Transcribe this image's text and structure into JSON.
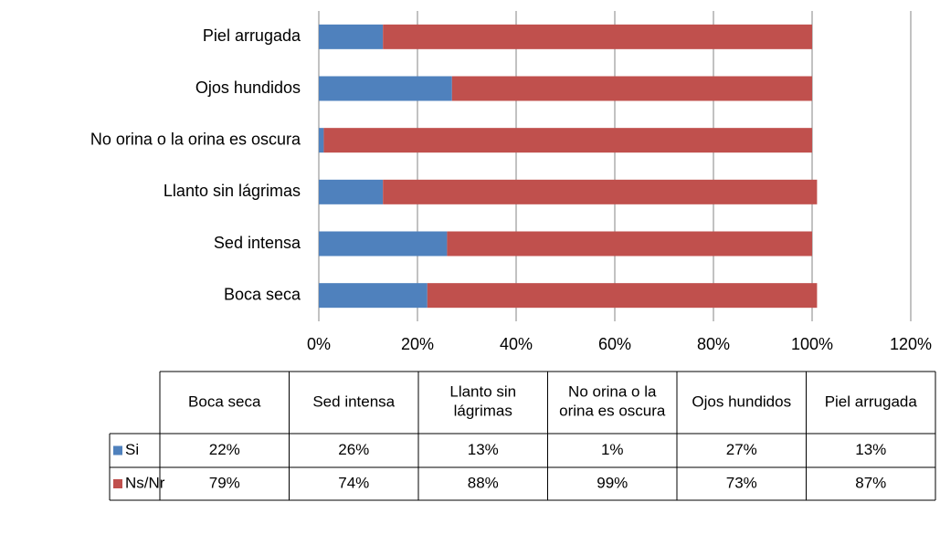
{
  "chart_data": {
    "type": "bar",
    "categories": [
      "Boca seca",
      "Sed intensa",
      "Llanto sin lágrimas",
      "No orina o la orina es oscura",
      "Ojos hundidos",
      "Piel arrugada"
    ],
    "series": [
      {
        "name": "Si",
        "color": "#4f81bd",
        "values": [
          22,
          26,
          13,
          1,
          27,
          13
        ],
        "value_labels": [
          "22%",
          "26%",
          "13%",
          "1%",
          "27%",
          "13%"
        ]
      },
      {
        "name": "Ns/Nr",
        "color": "#c0504d",
        "values": [
          79,
          74,
          88,
          99,
          73,
          87
        ],
        "value_labels": [
          "79%",
          "74%",
          "88%",
          "99%",
          "73%",
          "87%"
        ]
      }
    ],
    "stacked": true,
    "orientation": "horizontal",
    "xlim": [
      0,
      120
    ],
    "xticks": [
      {
        "value": 0,
        "label": "0%"
      },
      {
        "value": 20,
        "label": "20%"
      },
      {
        "value": 40,
        "label": "40%"
      },
      {
        "value": 60,
        "label": "60%"
      },
      {
        "value": 80,
        "label": "80%"
      },
      {
        "value": 100,
        "label": "100%"
      },
      {
        "value": 120,
        "label": "120%"
      }
    ],
    "grid": true,
    "data_table": true
  }
}
